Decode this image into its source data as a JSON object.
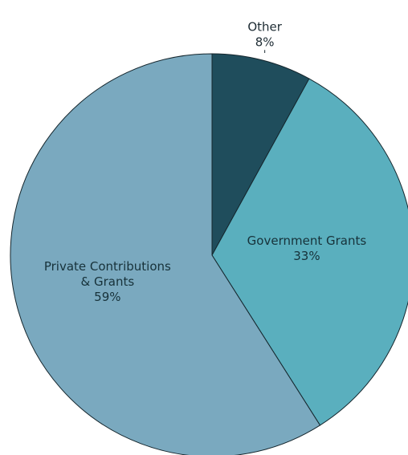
{
  "chart_data": {
    "type": "pie",
    "start_angle_deg": 0,
    "direction": "clockwise",
    "legend": "none",
    "slices": [
      {
        "label_lines": [
          "Other",
          "8%"
        ],
        "value": 8,
        "color": "#1f4d5c",
        "label_color": "#1d2b33",
        "label_mode": "outside-top"
      },
      {
        "label_lines": [
          "Government Grants",
          "33%"
        ],
        "value": 33,
        "color": "#5aafbe",
        "label_color": "#17323a",
        "label_mode": "inside"
      },
      {
        "label_lines": [
          "Private Contributions",
          "& Grants",
          "59%"
        ],
        "value": 59,
        "color": "#7aa9bf",
        "label_color": "#17323a",
        "label_mode": "inside"
      }
    ]
  }
}
